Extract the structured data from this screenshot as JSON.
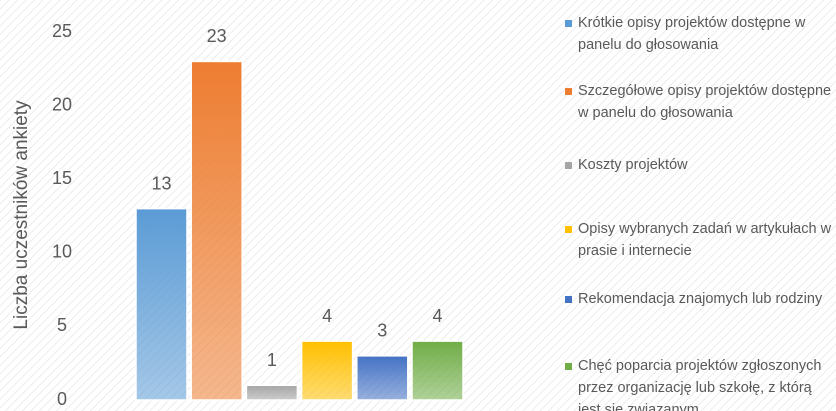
{
  "chart_data": {
    "type": "bar",
    "y_label": "Liczba uczestników ankiety",
    "categories": [
      null
    ],
    "series": [
      {
        "name": "Krótkie opisy projektów dostępne w panelu do głosowania",
        "color": "#5b9bd5",
        "values": [
          13
        ]
      },
      {
        "name": "Szczegółowe opisy projektów dostępne w panelu do głosowania",
        "color": "#ed7d31",
        "values": [
          23
        ]
      },
      {
        "name": "Koszty projektów",
        "color": "#a5a5a5",
        "values": [
          1
        ]
      },
      {
        "name": "Opisy wybranych zadań w artykułach w prasie i internecie",
        "color": "#ffc000",
        "values": [
          4
        ]
      },
      {
        "name": "Rekomendacja znajomych lub rodziny",
        "color": "#4472c4",
        "values": [
          3
        ]
      },
      {
        "name": "Chęć poparcia projektów zgłoszonych przez organizację lub szkołę, z którą jest się związanym",
        "color": "#70ad47",
        "values": [
          4
        ]
      }
    ],
    "ylim": [
      0,
      25
    ],
    "yticks": [
      0,
      5,
      10,
      15,
      20,
      25
    ],
    "grid": false,
    "legend": "right"
  }
}
